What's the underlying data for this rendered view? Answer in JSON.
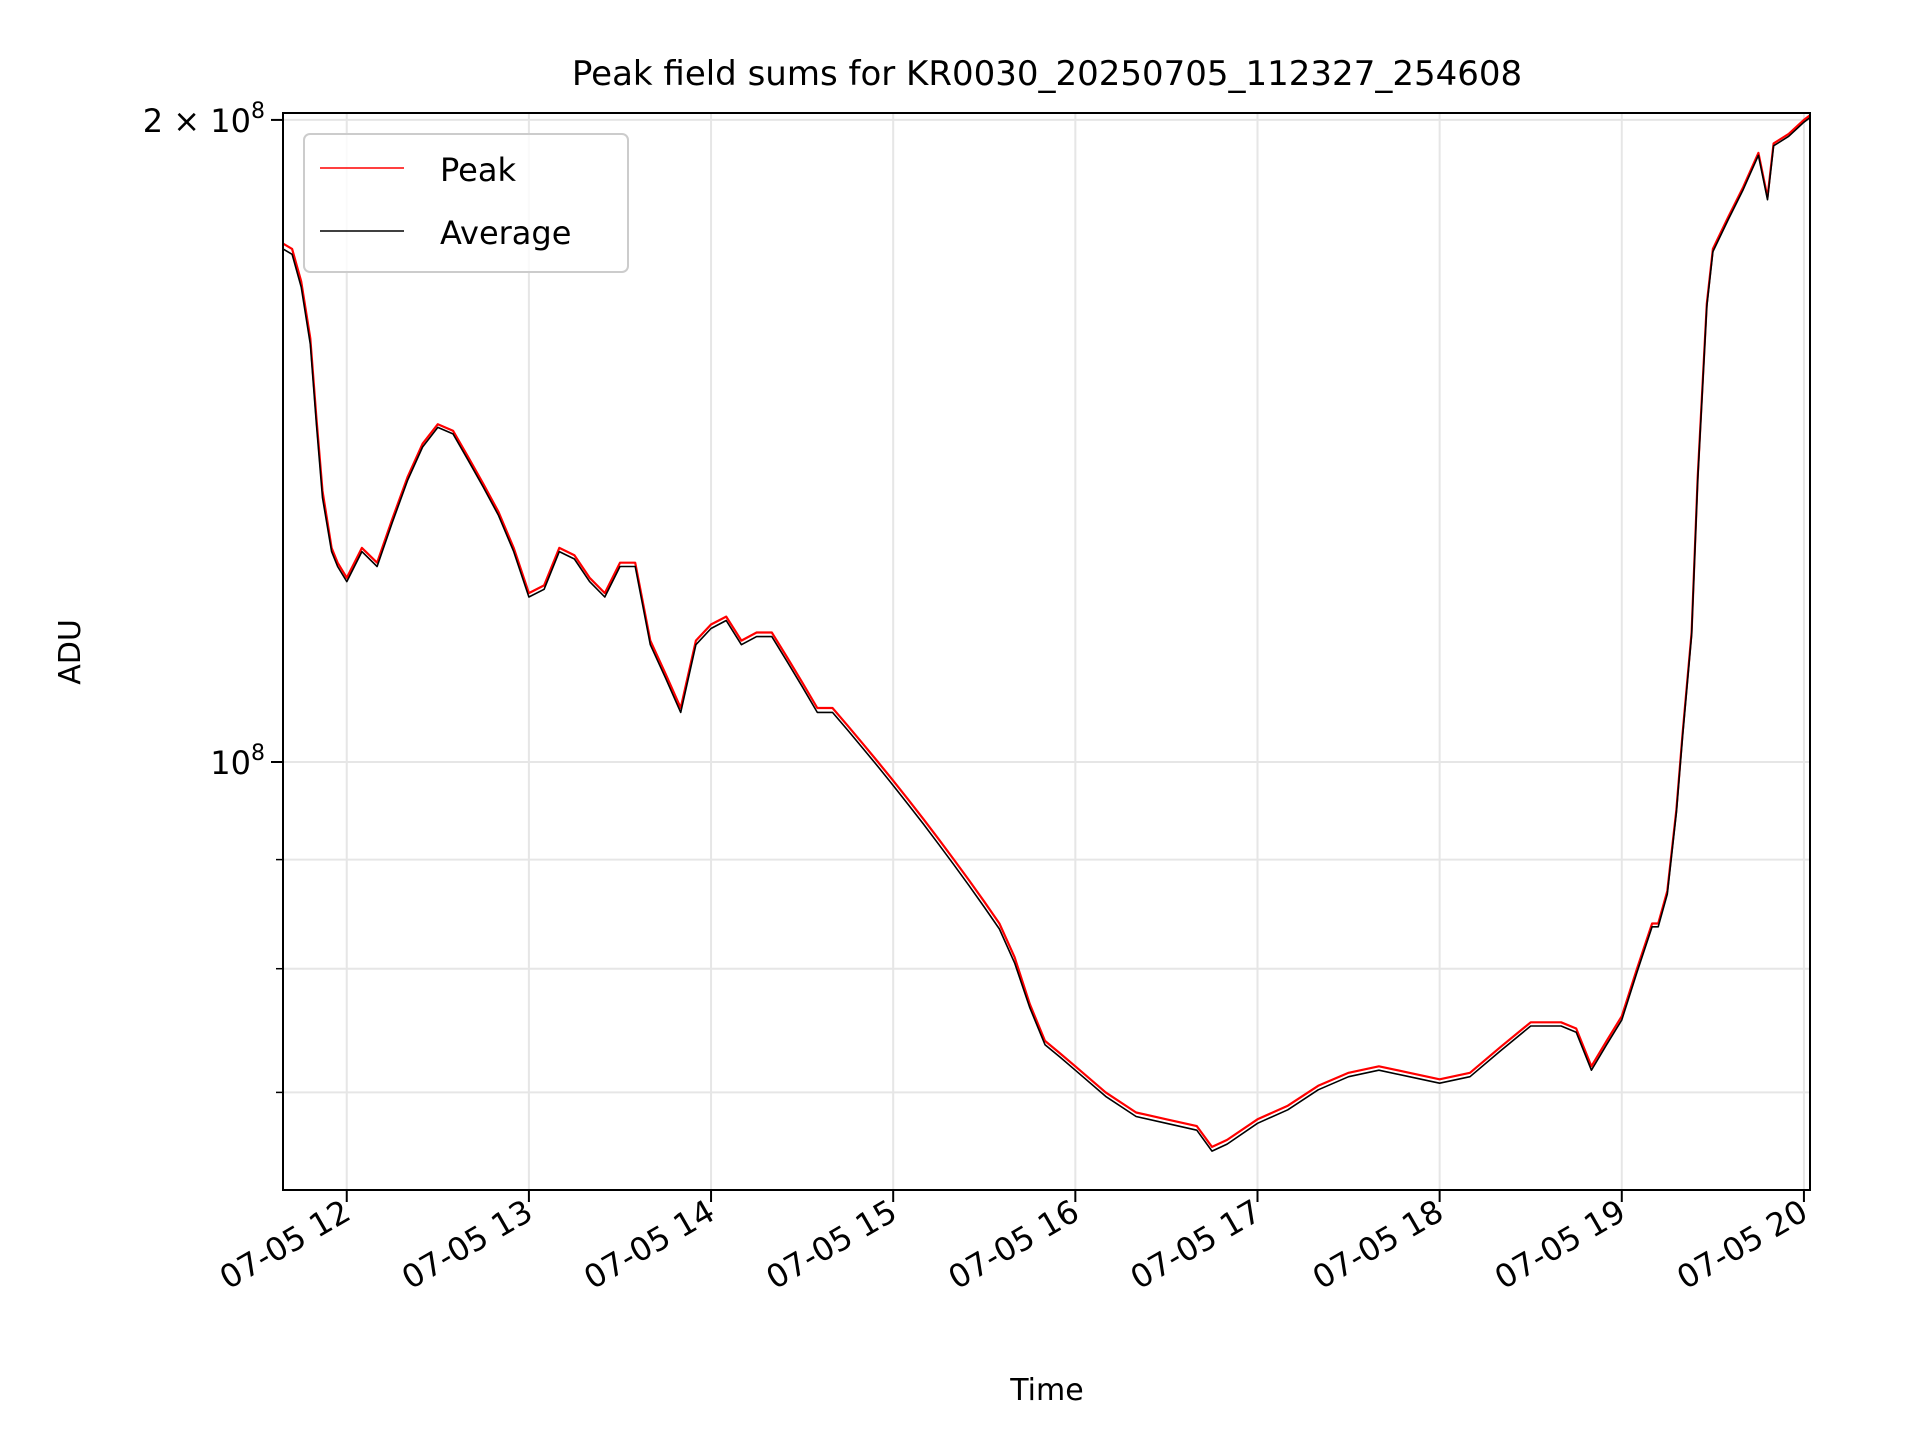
{
  "chart_data": {
    "type": "line",
    "title": "Peak field sums for KR0030_20250705_112327_254608",
    "xlabel": "Time",
    "ylabel": "ADU",
    "yscale": "log",
    "grid": true,
    "legend_position": "upper left",
    "x_ticks": [
      "07-05 12",
      "07-05 13",
      "07-05 14",
      "07-05 15",
      "07-05 16",
      "07-05 17",
      "07-05 18",
      "07-05 19",
      "07-05 20"
    ],
    "y_ticks": [
      {
        "value": 100000000,
        "base": "10",
        "exp": "8",
        "prefix": ""
      },
      {
        "value": 200000000,
        "base": "10",
        "exp": "8",
        "prefix": "2 × "
      }
    ],
    "xlim": [
      "2025-07-05 11:39",
      "2025-07-05 20:02"
    ],
    "ylim": [
      63000000,
      201500000
    ],
    "series": [
      {
        "name": "Peak",
        "color": "#ff0000",
        "x": [
          "2025-07-05 11:39",
          "2025-07-05 11:42",
          "2025-07-05 11:45",
          "2025-07-05 11:48",
          "2025-07-05 11:50",
          "2025-07-05 11:52",
          "2025-07-05 11:55",
          "2025-07-05 11:57",
          "2025-07-05 12:00",
          "2025-07-05 12:05",
          "2025-07-05 12:10",
          "2025-07-05 12:15",
          "2025-07-05 12:20",
          "2025-07-05 12:25",
          "2025-07-05 12:30",
          "2025-07-05 12:35",
          "2025-07-05 12:40",
          "2025-07-05 12:45",
          "2025-07-05 12:50",
          "2025-07-05 12:55",
          "2025-07-05 13:00",
          "2025-07-05 13:05",
          "2025-07-05 13:10",
          "2025-07-05 13:15",
          "2025-07-05 13:20",
          "2025-07-05 13:25",
          "2025-07-05 13:30",
          "2025-07-05 13:35",
          "2025-07-05 13:40",
          "2025-07-05 13:45",
          "2025-07-05 13:50",
          "2025-07-05 13:55",
          "2025-07-05 14:00",
          "2025-07-05 14:05",
          "2025-07-05 14:10",
          "2025-07-05 14:15",
          "2025-07-05 14:20",
          "2025-07-05 14:25",
          "2025-07-05 14:30",
          "2025-07-05 14:35",
          "2025-07-05 14:40",
          "2025-07-05 14:45",
          "2025-07-05 14:50",
          "2025-07-05 14:55",
          "2025-07-05 15:00",
          "2025-07-05 15:05",
          "2025-07-05 15:10",
          "2025-07-05 15:15",
          "2025-07-05 15:20",
          "2025-07-05 15:25",
          "2025-07-05 15:30",
          "2025-07-05 15:35",
          "2025-07-05 15:40",
          "2025-07-05 15:45",
          "2025-07-05 15:50",
          "2025-07-05 15:55",
          "2025-07-05 16:00",
          "2025-07-05 16:10",
          "2025-07-05 16:20",
          "2025-07-05 16:30",
          "2025-07-05 16:40",
          "2025-07-05 16:45",
          "2025-07-05 16:50",
          "2025-07-05 17:00",
          "2025-07-05 17:10",
          "2025-07-05 17:20",
          "2025-07-05 17:30",
          "2025-07-05 17:40",
          "2025-07-05 17:50",
          "2025-07-05 18:00",
          "2025-07-05 18:10",
          "2025-07-05 18:20",
          "2025-07-05 18:30",
          "2025-07-05 18:40",
          "2025-07-05 18:45",
          "2025-07-05 18:50",
          "2025-07-05 18:55",
          "2025-07-05 19:00",
          "2025-07-05 19:05",
          "2025-07-05 19:10",
          "2025-07-05 19:12",
          "2025-07-05 19:15",
          "2025-07-05 19:18",
          "2025-07-05 19:20",
          "2025-07-05 19:23",
          "2025-07-05 19:25",
          "2025-07-05 19:28",
          "2025-07-05 19:30",
          "2025-07-05 19:35",
          "2025-07-05 19:40",
          "2025-07-05 19:45",
          "2025-07-05 19:48",
          "2025-07-05 19:50",
          "2025-07-05 19:55",
          "2025-07-05 20:00",
          "2025-07-05 20:02"
        ],
        "values": [
          175000000,
          174000000,
          168000000,
          158000000,
          145000000,
          134000000,
          126000000,
          124000000,
          122000000,
          126000000,
          124000000,
          130000000,
          136000000,
          141000000,
          144000000,
          143000000,
          139000000,
          135000000,
          131000000,
          126000000,
          120000000,
          121000000,
          126000000,
          125000000,
          122000000,
          120000000,
          124000000,
          124000000,
          114000000,
          110000000,
          106000000,
          114000000,
          116000000,
          117000000,
          114000000,
          115000000,
          115000000,
          112000000,
          109000000,
          106000000,
          106000000,
          104000000,
          102000000,
          100000000,
          98000000,
          96000000,
          94000000,
          92000000,
          90000000,
          88000000,
          86000000,
          84000000,
          81000000,
          77000000,
          74000000,
          73000000,
          72000000,
          70000000,
          68500000,
          68000000,
          67500000,
          66000000,
          66500000,
          68000000,
          69000000,
          70500000,
          71500000,
          72000000,
          71500000,
          71000000,
          71500000,
          73500000,
          75500000,
          75500000,
          75000000,
          72000000,
          74000000,
          76000000,
          80000000,
          84000000,
          84000000,
          87000000,
          95000000,
          103000000,
          115000000,
          136000000,
          164000000,
          174000000,
          180000000,
          186000000,
          193000000,
          184000000,
          195000000,
          197000000,
          200000000,
          201000000
        ]
      },
      {
        "name": "Average",
        "color": "#000000",
        "x": [
          "2025-07-05 11:39",
          "2025-07-05 11:42",
          "2025-07-05 11:45",
          "2025-07-05 11:48",
          "2025-07-05 11:50",
          "2025-07-05 11:52",
          "2025-07-05 11:55",
          "2025-07-05 11:57",
          "2025-07-05 12:00",
          "2025-07-05 12:05",
          "2025-07-05 12:10",
          "2025-07-05 12:15",
          "2025-07-05 12:20",
          "2025-07-05 12:25",
          "2025-07-05 12:30",
          "2025-07-05 12:35",
          "2025-07-05 12:40",
          "2025-07-05 12:45",
          "2025-07-05 12:50",
          "2025-07-05 12:55",
          "2025-07-05 13:00",
          "2025-07-05 13:05",
          "2025-07-05 13:10",
          "2025-07-05 13:15",
          "2025-07-05 13:20",
          "2025-07-05 13:25",
          "2025-07-05 13:30",
          "2025-07-05 13:35",
          "2025-07-05 13:40",
          "2025-07-05 13:45",
          "2025-07-05 13:50",
          "2025-07-05 13:55",
          "2025-07-05 14:00",
          "2025-07-05 14:05",
          "2025-07-05 14:10",
          "2025-07-05 14:15",
          "2025-07-05 14:20",
          "2025-07-05 14:25",
          "2025-07-05 14:30",
          "2025-07-05 14:35",
          "2025-07-05 14:40",
          "2025-07-05 14:45",
          "2025-07-05 14:50",
          "2025-07-05 14:55",
          "2025-07-05 15:00",
          "2025-07-05 15:05",
          "2025-07-05 15:10",
          "2025-07-05 15:15",
          "2025-07-05 15:20",
          "2025-07-05 15:25",
          "2025-07-05 15:30",
          "2025-07-05 15:35",
          "2025-07-05 15:40",
          "2025-07-05 15:45",
          "2025-07-05 15:50",
          "2025-07-05 15:55",
          "2025-07-05 16:00",
          "2025-07-05 16:10",
          "2025-07-05 16:20",
          "2025-07-05 16:30",
          "2025-07-05 16:40",
          "2025-07-05 16:45",
          "2025-07-05 16:50",
          "2025-07-05 17:00",
          "2025-07-05 17:10",
          "2025-07-05 17:20",
          "2025-07-05 17:30",
          "2025-07-05 17:40",
          "2025-07-05 17:50",
          "2025-07-05 18:00",
          "2025-07-05 18:10",
          "2025-07-05 18:20",
          "2025-07-05 18:30",
          "2025-07-05 18:40",
          "2025-07-05 18:45",
          "2025-07-05 18:50",
          "2025-07-05 18:55",
          "2025-07-05 19:00",
          "2025-07-05 19:05",
          "2025-07-05 19:10",
          "2025-07-05 19:12",
          "2025-07-05 19:15",
          "2025-07-05 19:18",
          "2025-07-05 19:20",
          "2025-07-05 19:23",
          "2025-07-05 19:25",
          "2025-07-05 19:28",
          "2025-07-05 19:30",
          "2025-07-05 19:35",
          "2025-07-05 19:40",
          "2025-07-05 19:45",
          "2025-07-05 19:48",
          "2025-07-05 19:50",
          "2025-07-05 19:55",
          "2025-07-05 20:00",
          "2025-07-05 20:02"
        ],
        "values": [
          174000000,
          173000000,
          167000000,
          157000000,
          144000000,
          133000000,
          125500000,
          123500000,
          121500000,
          125500000,
          123500000,
          129500000,
          135500000,
          140500000,
          143500000,
          142500000,
          138500000,
          134500000,
          130500000,
          125500000,
          119500000,
          120500000,
          125500000,
          124500000,
          121500000,
          119500000,
          123500000,
          123500000,
          113500000,
          109500000,
          105500000,
          113500000,
          115500000,
          116500000,
          113500000,
          114500000,
          114500000,
          111500000,
          108500000,
          105500000,
          105500000,
          103500000,
          101500000,
          99500000,
          97500000,
          95500000,
          93500000,
          91500000,
          89500000,
          87500000,
          85500000,
          83500000,
          80500000,
          76700000,
          73700000,
          72700000,
          71700000,
          69700000,
          68200000,
          67700000,
          67200000,
          65700000,
          66200000,
          67700000,
          68700000,
          70200000,
          71200000,
          71700000,
          71200000,
          70700000,
          71200000,
          73200000,
          75200000,
          75200000,
          74700000,
          71700000,
          73700000,
          75700000,
          79700000,
          83700000,
          83700000,
          86700000,
          94700000,
          102700000,
          114700000,
          135500000,
          163500000,
          173500000,
          179500000,
          185500000,
          192500000,
          183500000,
          194500000,
          196500000,
          199500000,
          200500000
        ]
      }
    ]
  }
}
